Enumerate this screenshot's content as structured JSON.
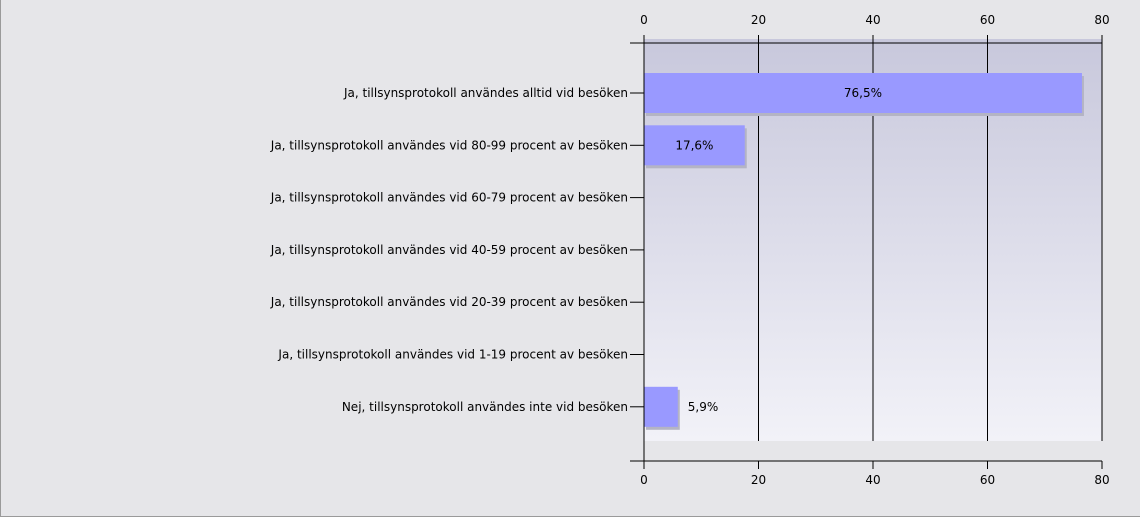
{
  "chart_data": {
    "type": "bar",
    "orientation": "horizontal",
    "title": "",
    "xlabel": "",
    "ylabel": "",
    "xlim": [
      0,
      80
    ],
    "ticks": [
      "0",
      "20",
      "40",
      "60",
      "80"
    ],
    "tick_values": [
      0,
      20,
      40,
      60,
      80
    ],
    "axis_ticks_position": "top and bottom",
    "grid": true,
    "categories": [
      "Ja, tillsynsprotokoll användes alltid vid besöken",
      "Ja, tillsynsprotokoll användes vid 80-99 procent av besöken",
      "Ja, tillsynsprotokoll användes vid 60-79 procent av besöken",
      "Ja, tillsynsprotokoll användes vid 40-59 procent av besöken",
      "Ja, tillsynsprotokoll användes vid 20-39 procent av besöken",
      "Ja, tillsynsprotokoll användes vid 1-19 procent av besöken",
      "Nej, tillsynsprotokoll användes inte vid besöken"
    ],
    "values": [
      76.5,
      17.6,
      0,
      0,
      0,
      0,
      5.9
    ],
    "data_labels": [
      "76,5%",
      "17,6%",
      "",
      "",
      "",
      "",
      "5,9%"
    ],
    "colors": {
      "bar": "#9999ff",
      "bar_shadow": "#b4b4c4",
      "plot_top": "#c8c8dc",
      "plot_bottom": "#f2f2f8",
      "frame_background": "#e6e6e9",
      "grid": "#000000"
    }
  }
}
